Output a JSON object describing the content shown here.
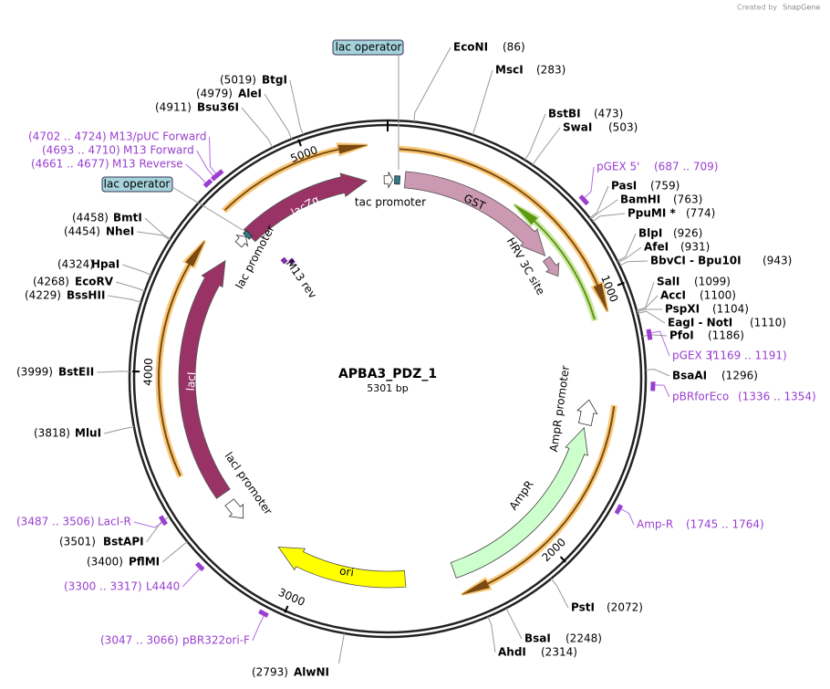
{
  "header": {
    "created_by": "Created by",
    "brand": "SnapGene"
  },
  "map": {
    "name": "APBA3_PDZ_1",
    "length": "5301 bp",
    "ticks": [
      1000,
      2000,
      3000,
      4000,
      5000
    ]
  },
  "enzymes": [
    {
      "name": "EcoNI",
      "position": "(86)"
    },
    {
      "name": "MscI",
      "position": "(283)"
    },
    {
      "name": "BstBI",
      "position": "(473)"
    },
    {
      "name": "SwaI",
      "position": "(503)"
    },
    {
      "name": "PasI",
      "position": "(759)"
    },
    {
      "name": "BamHI",
      "position": "(763)"
    },
    {
      "name": "PpuMI *",
      "position": "(774)"
    },
    {
      "name": "BlpI",
      "position": "(926)"
    },
    {
      "name": "AfeI",
      "position": "(931)"
    },
    {
      "name": "BbvCI - Bpu10I",
      "position": "(943)"
    },
    {
      "name": "SalI",
      "position": "(1099)"
    },
    {
      "name": "AccI",
      "position": "(1100)"
    },
    {
      "name": "PspXI",
      "position": "(1104)"
    },
    {
      "name": "EagI - NotI",
      "position": "(1110)"
    },
    {
      "name": "PfoI",
      "position": "(1186)"
    },
    {
      "name": "BsaAI",
      "position": "(1296)"
    },
    {
      "name": "PstI",
      "position": "(2072)"
    },
    {
      "name": "BsaI",
      "position": "(2248)"
    },
    {
      "name": "AhdI",
      "position": "(2314)"
    },
    {
      "name": "AlwNI",
      "position": "(2793)"
    },
    {
      "name": "PflMI",
      "position": "(3400)"
    },
    {
      "name": "BstAPI",
      "position": "(3501)"
    },
    {
      "name": "MluI",
      "position": "(3818)"
    },
    {
      "name": "BstEII",
      "position": "(3999)"
    },
    {
      "name": "BssHII",
      "position": "(4229)"
    },
    {
      "name": "EcoRV",
      "position": "(4268)"
    },
    {
      "name": "HpaI",
      "position": "(4324)"
    },
    {
      "name": "NheI",
      "position": "(4454)"
    },
    {
      "name": "BmtI",
      "position": "(4458)"
    },
    {
      "name": "Bsu36I",
      "position": "(4911)"
    },
    {
      "name": "AleI",
      "position": "(4979)"
    },
    {
      "name": "BtgI",
      "position": "(5019)"
    }
  ],
  "primers": [
    {
      "name": "pGEX 5'",
      "range": "(687 .. 709)"
    },
    {
      "name": "pGEX 3'",
      "range": "(1169 .. 1191)"
    },
    {
      "name": "pBRforEco",
      "range": "(1336 .. 1354)"
    },
    {
      "name": "Amp-R",
      "range": "(1745 .. 1764)"
    },
    {
      "name": "LacI-R",
      "range": "(3487 .. 3506)"
    },
    {
      "name": "L4440",
      "range": "(3300 .. 3317)"
    },
    {
      "name": "pBR322ori-F",
      "range": "(3047 .. 3066)"
    },
    {
      "name": "M13 Reverse",
      "range": "(4661 .. 4677)"
    },
    {
      "name": "M13 Forward",
      "range": "(4693 .. 4710)"
    },
    {
      "name": "M13/pUC Forward",
      "range": "(4702 .. 4724)"
    }
  ],
  "features": [
    "lacZα",
    "GST",
    "HRV 3C site",
    "tac promoter",
    "lac promoter",
    "M13 rev",
    "AmpR promoter",
    "AmpR",
    "ori",
    "lacI",
    "lacI promoter"
  ],
  "boxed_labels": [
    "lac operator",
    "lac operator"
  ]
}
